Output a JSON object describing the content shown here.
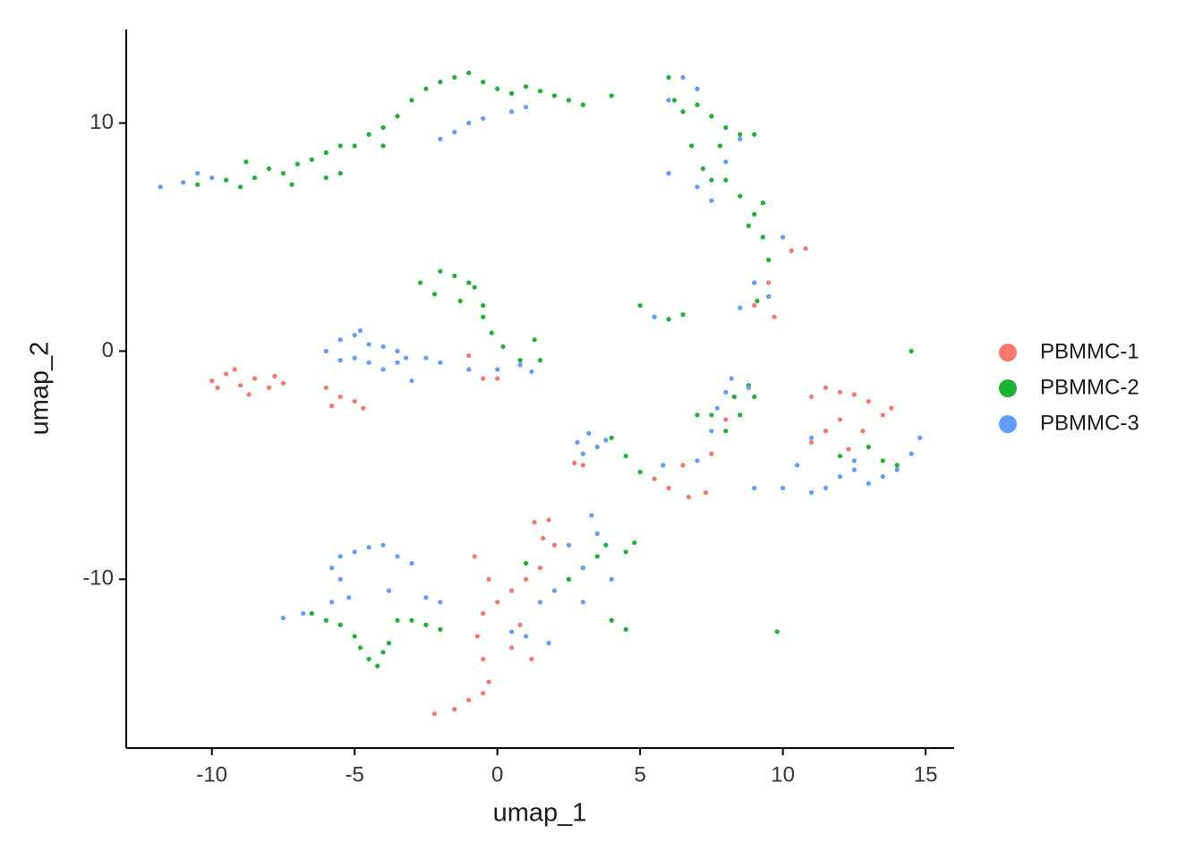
{
  "chart_data": {
    "type": "scatter",
    "xlabel": "umap_1",
    "ylabel": "umap_2",
    "xlim": [
      -13,
      16
    ],
    "ylim": [
      -17.4,
      14.1
    ],
    "xticks": [
      -10,
      -5,
      0,
      5,
      10,
      15
    ],
    "yticks": [
      -10,
      0,
      10
    ],
    "legend": "right",
    "series": [
      {
        "name": "PBMMC-1",
        "color": "#F8766D",
        "x": [
          -10,
          -9.5,
          -9,
          -8.5,
          -8,
          -7.5,
          -9.2,
          -8.7,
          -9.8,
          -7.8,
          -6,
          -5.5,
          -5,
          -4.7,
          -5.8,
          -1,
          -0.5,
          0,
          11,
          11.5,
          12,
          12.5,
          13,
          13.5,
          12,
          11.5,
          12.8,
          13.8,
          11,
          12.3,
          2.7,
          3,
          5.5,
          6,
          6.7,
          7.3,
          6.5,
          7.5,
          8,
          10.3,
          10.8,
          9.5,
          9,
          9.7,
          -2.2,
          -1.5,
          -1,
          -0.5,
          -0.3,
          -0.5,
          -0.7,
          -0.5,
          0,
          0.5,
          1,
          1.5,
          2,
          1.3,
          1.8,
          1.6,
          -0.8,
          -0.3,
          0.8,
          1.2,
          0.5
        ],
        "values": [
          -1.3,
          -1.0,
          -1.5,
          -1.2,
          -1.6,
          -1.4,
          -0.8,
          -1.9,
          -1.6,
          -1.1,
          -1.6,
          -2,
          -2.2,
          -2.5,
          -2.4,
          -0.2,
          -1.2,
          -1.2,
          -2,
          -1.6,
          -1.8,
          -1.9,
          -2.2,
          -2.8,
          -3,
          -3.5,
          -3.5,
          -2.5,
          -4,
          -4.3,
          -4.9,
          -5,
          -5.6,
          -6,
          -6.4,
          -6.2,
          -5,
          -4.5,
          -3,
          4.4,
          4.5,
          3,
          2,
          1.5,
          -15.9,
          -15.7,
          -15.3,
          -15,
          -14.5,
          -13.5,
          -12.5,
          -11.5,
          -11,
          -10.5,
          -10,
          -9.5,
          -8.5,
          -7.5,
          -7.4,
          -8.2,
          -9,
          -10,
          -12,
          -13.5,
          -13
        ]
      },
      {
        "name": "PBMMC-2",
        "color": "#1DB233",
        "x": [
          -10.5,
          -9.5,
          -9,
          -8.5,
          -8,
          -7.5,
          -7,
          -6.5,
          -6,
          -5.5,
          -5,
          -4.5,
          -4,
          -3.5,
          -3,
          -2.5,
          -2,
          -1.5,
          -1,
          -0.5,
          0,
          0.5,
          1,
          1.5,
          2,
          2.5,
          3,
          4,
          -8.8,
          -7.2,
          -6,
          -5.5,
          -4,
          6,
          6.2,
          6.5,
          7,
          7.5,
          8,
          8.5,
          9,
          6.8,
          7.2,
          7.5,
          8,
          8.5,
          9,
          9.3,
          9.5,
          9,
          9.1,
          9.3,
          8.8,
          7.8,
          -2.7,
          -2,
          -1.5,
          -1,
          -0.8,
          -2.2,
          -1.3,
          -0.5,
          -0.5,
          -0.2,
          0.2,
          0.8,
          1.5,
          1.3,
          5,
          5.5,
          6,
          6.5,
          7,
          7.5,
          8.3,
          8.5,
          8,
          9,
          8.8,
          4,
          4.5,
          5,
          13,
          13.5,
          14.5,
          14,
          12,
          -6.5,
          -6,
          -5.5,
          -5,
          -4.8,
          -4.5,
          -4.2,
          -4,
          -3.8,
          -3.5,
          -3,
          -2.5,
          -2,
          1,
          2.5,
          3,
          3.5,
          3.8,
          4.8,
          4.5,
          4,
          4.5,
          9.8
        ],
        "values": [
          7.3,
          7.5,
          7.2,
          7.6,
          8,
          7.8,
          8.2,
          8.4,
          8.7,
          9,
          9,
          9.5,
          9.8,
          10.3,
          11,
          11.5,
          11.8,
          12,
          12.2,
          11.8,
          11.5,
          11.3,
          11.6,
          11.4,
          11.2,
          11,
          10.8,
          11.2,
          8.3,
          7.3,
          7.6,
          7.8,
          9,
          12,
          11,
          10.5,
          10.8,
          10.3,
          9.8,
          9.5,
          9.5,
          9,
          8,
          7.5,
          7.5,
          6.8,
          6,
          5,
          4,
          3,
          2.2,
          6.5,
          5.5,
          9,
          3,
          3.5,
          3.3,
          3,
          2.8,
          2.5,
          2.2,
          2,
          1.5,
          0.8,
          0.2,
          -0.4,
          -0.4,
          0.5,
          2,
          1.5,
          1.4,
          1.6,
          -2.8,
          -2.8,
          -2,
          -2.8,
          -3.5,
          -2,
          -1.5,
          -3.8,
          -4.6,
          -5.3,
          -4.2,
          -4.8,
          0,
          -5,
          -4.6,
          -11.5,
          -11.8,
          -12,
          -12.5,
          -13,
          -13.5,
          -13.8,
          -13.2,
          -12.8,
          -11.8,
          -11.8,
          -12,
          -12.2,
          -9.3,
          -10,
          -9.5,
          -9,
          -8.5,
          -8.4,
          -8.8,
          -11.8,
          -12.2,
          -12.3
        ]
      },
      {
        "name": "PBMMC-3",
        "color": "#619CFF",
        "x": [
          -11.8,
          -11,
          -10.5,
          -10,
          -2,
          -1.5,
          -1,
          -0.5,
          0.5,
          1,
          6,
          6.5,
          7,
          8.5,
          8,
          7,
          6,
          7.5,
          9,
          9.5,
          10,
          8.5,
          5.5,
          -6,
          -5.5,
          -5,
          -4.5,
          -4,
          -3.5,
          -5,
          -4.5,
          -4,
          -3.5,
          -5.5,
          -4.8,
          -3.2,
          -2.5,
          -2,
          -1,
          0,
          0.8,
          1.2,
          -3,
          2.8,
          3.2,
          3.5,
          3,
          3.8,
          5.8,
          7,
          7.5,
          7.7,
          8,
          8.2,
          8.8,
          9,
          10,
          11,
          11.5,
          12,
          12.5,
          13,
          13.5,
          14,
          14.5,
          14.8,
          10.5,
          11,
          12.5,
          -5.8,
          -5.5,
          -5,
          -4.5,
          -4,
          -3.5,
          -3,
          -5.5,
          -5.2,
          -5.8,
          -7.5,
          -6.8,
          -3.8,
          -2.5,
          -2,
          1,
          0.5,
          1.8,
          3,
          3.5,
          3.3,
          2.5,
          2,
          1.5,
          3,
          4
        ],
        "values": [
          7.2,
          7.4,
          7.8,
          7.6,
          9.3,
          9.6,
          10,
          10.2,
          10.5,
          10.7,
          11,
          12,
          11.5,
          9.3,
          8.3,
          7.2,
          7.8,
          6.6,
          3,
          2.4,
          5,
          1.9,
          1.5,
          0,
          0.5,
          0.7,
          0.3,
          0.2,
          0,
          -0.3,
          -0.5,
          -0.8,
          -0.5,
          -0.4,
          0.9,
          -0.3,
          -0.3,
          -0.5,
          -0.8,
          -0.8,
          -0.6,
          -0.9,
          -1.3,
          -4,
          -3.6,
          -4.2,
          -4.5,
          -3.9,
          -5,
          -4.8,
          -3.5,
          -2.5,
          -1.8,
          -1.2,
          -1.6,
          -6,
          -6,
          -6.2,
          -6,
          -5.5,
          -5.2,
          -5.8,
          -5.5,
          -5.2,
          -4.5,
          -3.8,
          -5,
          -3.8,
          -4.8,
          -9.5,
          -9,
          -8.8,
          -8.6,
          -8.5,
          -9,
          -9.3,
          -10,
          -10.8,
          -11,
          -11.7,
          -11.5,
          -10.5,
          -10.8,
          -11,
          -12.5,
          -12.3,
          -12.8,
          -11,
          -8,
          -7.2,
          -8.5,
          -10.5,
          -11,
          -9.5,
          -10
        ]
      }
    ]
  }
}
